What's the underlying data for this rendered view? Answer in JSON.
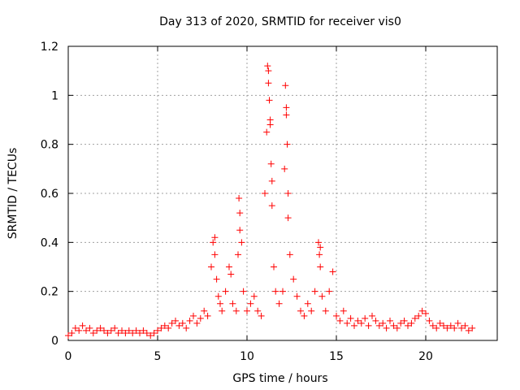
{
  "chart_data": {
    "type": "scatter",
    "title": "Day 313 of 2020, SRMTID for receiver vis0",
    "xlabel": "GPS time / hours",
    "ylabel": "SRMTID / TECUs",
    "xlim": [
      0,
      24
    ],
    "ylim": [
      0,
      1.2
    ],
    "x_ticks": [
      0,
      5,
      10,
      15,
      20
    ],
    "x_tick_labels": [
      "0",
      "5",
      "10",
      "15",
      "20"
    ],
    "y_ticks": [
      0,
      0.2,
      0.4,
      0.6,
      0.8,
      1.0,
      1.2
    ],
    "y_tick_labels": [
      "0",
      "0.2",
      "0.4",
      "0.6",
      "0.8",
      "1",
      "1.2"
    ],
    "grid": true,
    "marker": "+",
    "series": [
      {
        "name": "SRMTID",
        "color": "#ff0000",
        "x": [
          0.0,
          0.2,
          0.4,
          0.6,
          0.8,
          1.0,
          1.2,
          1.4,
          1.6,
          1.8,
          2.0,
          2.2,
          2.4,
          2.6,
          2.8,
          3.0,
          3.2,
          3.4,
          3.6,
          3.8,
          4.0,
          4.2,
          4.4,
          4.6,
          4.8,
          5.0,
          5.2,
          5.4,
          5.6,
          5.8,
          6.0,
          6.2,
          6.4,
          6.6,
          6.8,
          7.0,
          7.2,
          7.4,
          7.6,
          7.8,
          8.0,
          8.1,
          8.2,
          8.3,
          8.4,
          8.5,
          8.6,
          8.8,
          9.0,
          9.1,
          9.2,
          9.4,
          9.5,
          9.6,
          9.7,
          9.8,
          10.0,
          10.2,
          10.4,
          10.6,
          10.8,
          11.0,
          11.1,
          11.2,
          11.3,
          11.4,
          11.5,
          11.6,
          11.8,
          12.0,
          12.1,
          12.2,
          12.3,
          12.4,
          12.6,
          12.8,
          13.0,
          13.2,
          13.4,
          13.6,
          13.8,
          14.0,
          14.1,
          14.2,
          14.4,
          14.6,
          14.8,
          15.0,
          15.2,
          15.4,
          15.6,
          15.8,
          16.0,
          16.2,
          16.4,
          16.6,
          16.8,
          17.0,
          17.2,
          17.4,
          17.6,
          17.8,
          18.0,
          18.2,
          18.4,
          18.6,
          18.8,
          19.0,
          19.2,
          19.4,
          19.6,
          19.8,
          20.0,
          20.2,
          20.4,
          20.6,
          20.8,
          21.0,
          21.2,
          21.4,
          21.6,
          21.8,
          22.0,
          22.2,
          22.4,
          22.6,
          11.15,
          11.2,
          11.25,
          11.3,
          12.15,
          12.2,
          12.25,
          9.55,
          9.6,
          8.2,
          14.1,
          14.05,
          12.3,
          11.35,
          11.4
        ],
        "y": [
          0.02,
          0.03,
          0.05,
          0.04,
          0.06,
          0.04,
          0.05,
          0.03,
          0.04,
          0.05,
          0.04,
          0.03,
          0.04,
          0.05,
          0.03,
          0.04,
          0.03,
          0.04,
          0.03,
          0.04,
          0.03,
          0.04,
          0.03,
          0.02,
          0.03,
          0.04,
          0.05,
          0.06,
          0.05,
          0.07,
          0.08,
          0.06,
          0.07,
          0.05,
          0.08,
          0.1,
          0.07,
          0.09,
          0.12,
          0.1,
          0.3,
          0.4,
          0.35,
          0.25,
          0.18,
          0.15,
          0.12,
          0.2,
          0.3,
          0.27,
          0.15,
          0.12,
          0.35,
          0.45,
          0.4,
          0.2,
          0.12,
          0.15,
          0.18,
          0.12,
          0.1,
          0.6,
          0.85,
          1.1,
          0.9,
          0.55,
          0.3,
          0.2,
          0.15,
          0.2,
          0.7,
          0.95,
          0.5,
          0.35,
          0.25,
          0.18,
          0.12,
          0.1,
          0.15,
          0.12,
          0.2,
          0.4,
          0.3,
          0.18,
          0.12,
          0.2,
          0.28,
          0.1,
          0.08,
          0.12,
          0.07,
          0.09,
          0.06,
          0.08,
          0.07,
          0.09,
          0.06,
          0.1,
          0.08,
          0.06,
          0.07,
          0.05,
          0.08,
          0.06,
          0.05,
          0.07,
          0.08,
          0.06,
          0.07,
          0.09,
          0.1,
          0.12,
          0.11,
          0.08,
          0.06,
          0.05,
          0.07,
          0.06,
          0.05,
          0.06,
          0.05,
          0.07,
          0.05,
          0.06,
          0.04,
          0.05,
          1.12,
          1.05,
          0.98,
          0.88,
          1.04,
          0.92,
          0.8,
          0.58,
          0.52,
          0.42,
          0.38,
          0.35,
          0.6,
          0.72,
          0.65
        ]
      }
    ]
  }
}
